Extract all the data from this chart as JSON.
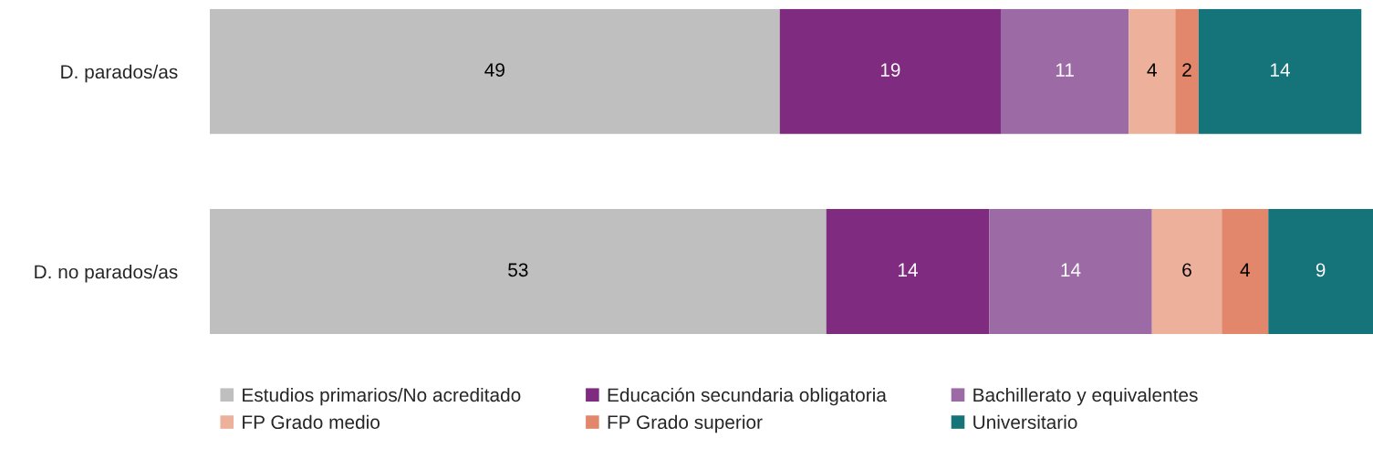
{
  "chart_data": {
    "type": "bar",
    "orientation": "horizontal",
    "stacked": true,
    "categories": [
      "D. parados/as",
      "D. no parados/as"
    ],
    "series": [
      {
        "name": "Estudios primarios/No acreditado",
        "color": "#bfbfbf",
        "values": [
          49,
          53
        ]
      },
      {
        "name": "Educación secundaria obligatoria",
        "color": "#7f2c80",
        "values": [
          19,
          14
        ]
      },
      {
        "name": "Bachillerato y equivalentes",
        "color": "#9c6ba6",
        "values": [
          11,
          14
        ]
      },
      {
        "name": "FP Grado medio",
        "color": "#ecb09b",
        "values": [
          4,
          6
        ]
      },
      {
        "name": "FP Grado superior",
        "color": "#e3876c",
        "values": [
          2,
          4
        ]
      },
      {
        "name": "Universitario",
        "color": "#15737a",
        "values": [
          14,
          9
        ]
      }
    ],
    "xlim": [
      0,
      100
    ],
    "tick_labels": "y",
    "data_labels": true,
    "legend": "bottom",
    "grid": false
  }
}
